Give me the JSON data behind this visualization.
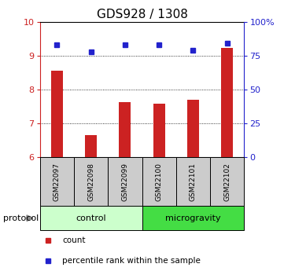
{
  "title": "GDS928 / 1308",
  "samples": [
    "GSM22097",
    "GSM22098",
    "GSM22099",
    "GSM22100",
    "GSM22101",
    "GSM22102"
  ],
  "bar_values": [
    8.55,
    6.65,
    7.62,
    7.57,
    7.7,
    9.22
  ],
  "percentile_values": [
    83,
    78,
    83,
    83,
    79,
    84
  ],
  "ylim_left": [
    6,
    10
  ],
  "ylim_right": [
    0,
    100
  ],
  "yticks_left": [
    6,
    7,
    8,
    9,
    10
  ],
  "yticks_right": [
    0,
    25,
    50,
    75,
    100
  ],
  "ytick_labels_right": [
    "0",
    "25",
    "50",
    "75",
    "100%"
  ],
  "bar_color": "#cc2222",
  "dot_color": "#2222cc",
  "bar_width": 0.35,
  "groups": [
    {
      "label": "control",
      "indices": [
        0,
        1,
        2
      ],
      "color": "#ccffcc"
    },
    {
      "label": "microgravity",
      "indices": [
        3,
        4,
        5
      ],
      "color": "#44dd44"
    }
  ],
  "protocol_label": "protocol",
  "legend_items": [
    {
      "label": "count",
      "color": "#cc2222"
    },
    {
      "label": "percentile rank within the sample",
      "color": "#2222cc"
    }
  ],
  "grid_color": "#888888",
  "sample_box_color": "#cccccc",
  "title_fontsize": 11,
  "tick_fontsize": 8,
  "label_fontsize": 8
}
